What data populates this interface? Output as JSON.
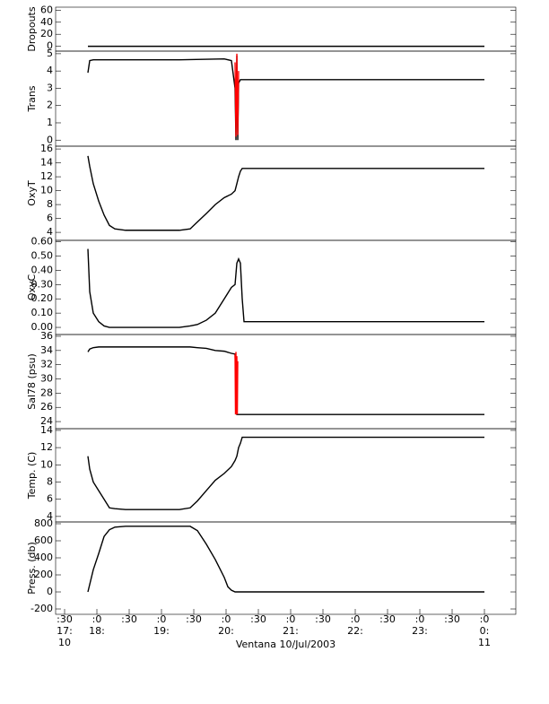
{
  "chart_data": [
    {
      "type": "line",
      "ylabel": "Dropouts",
      "xlim": [
        17.361,
        24.486
      ],
      "ylim": [
        -8,
        65
      ],
      "yticks": [
        0,
        20,
        40,
        60
      ],
      "x": [
        17.861,
        20.278,
        24.0
      ],
      "series": [
        {
          "name": "Dropouts",
          "color": "#000000",
          "values": [
            0,
            0,
            0
          ]
        }
      ]
    },
    {
      "type": "line",
      "ylabel": "Trans",
      "xlim": [
        17.361,
        24.486
      ],
      "ylim": [
        -0.35,
        5.15
      ],
      "yticks": [
        0,
        1,
        2,
        3,
        4,
        5
      ],
      "x": [
        17.861,
        17.889,
        17.944,
        18.028,
        18.194,
        18.722,
        19.278,
        19.972,
        20.083,
        20.139,
        20.153,
        20.167,
        20.181,
        20.194,
        20.222,
        20.278,
        24.0
      ],
      "series": [
        {
          "name": "Trans",
          "color": "#000000",
          "values": [
            3.9,
            4.6,
            4.65,
            4.65,
            4.65,
            4.65,
            4.65,
            4.7,
            4.6,
            3.0,
            0,
            4.9,
            0,
            3.3,
            3.5,
            3.5,
            3.5
          ]
        },
        {
          "name": "Trans spikes",
          "color": "#ff0000",
          "x": [
            20.139,
            20.153,
            20.167,
            20.181,
            20.194
          ],
          "values": [
            4.5,
            0.2,
            5.0,
            0.3,
            4.0
          ]
        }
      ]
    },
    {
      "type": "line",
      "ylabel": "OxyT",
      "xlim": [
        17.361,
        24.486
      ],
      "ylim": [
        2.85,
        16.4
      ],
      "yticks": [
        4,
        6,
        8,
        10,
        12,
        14,
        16
      ],
      "x": [
        17.861,
        17.889,
        17.944,
        18.028,
        18.111,
        18.194,
        18.278,
        18.444,
        19.278,
        19.444,
        19.556,
        19.694,
        19.833,
        19.972,
        20.083,
        20.139,
        20.167,
        20.194,
        20.222,
        20.25,
        24.0
      ],
      "series": [
        {
          "name": "OxyT",
          "color": "#000000",
          "values": [
            15,
            13.5,
            11,
            8.5,
            6.5,
            5,
            4.5,
            4.3,
            4.3,
            4.5,
            5.5,
            6.7,
            8,
            9,
            9.5,
            10,
            11,
            12,
            12.8,
            13.2,
            13.2
          ]
        }
      ]
    },
    {
      "type": "line",
      "ylabel": "OxyC",
      "xlim": [
        17.361,
        24.486
      ],
      "ylim": [
        -0.05,
        0.61
      ],
      "yticks": [
        {
          "value": 0,
          "label": "0.00"
        },
        {
          "value": 0.1,
          "label": "0.10"
        },
        {
          "value": 0.2,
          "label": "0.20"
        },
        {
          "value": 0.3,
          "label": "0.30"
        },
        {
          "value": 0.4,
          "label": "0.40"
        },
        {
          "value": 0.5,
          "label": "0.50"
        },
        {
          "value": 0.6,
          "label": "0.60"
        }
      ],
      "x": [
        17.861,
        17.889,
        17.944,
        18.028,
        18.111,
        18.194,
        19.278,
        19.444,
        19.556,
        19.694,
        19.833,
        19.972,
        20.083,
        20.139,
        20.167,
        20.194,
        20.222,
        20.25,
        20.278,
        24.0
      ],
      "series": [
        {
          "name": "OxyC",
          "color": "#000000",
          "values": [
            0.55,
            0.25,
            0.1,
            0.04,
            0.01,
            0,
            0,
            0.01,
            0.02,
            0.05,
            0.1,
            0.2,
            0.28,
            0.3,
            0.45,
            0.48,
            0.45,
            0.2,
            0.04,
            0.04
          ]
        }
      ]
    },
    {
      "type": "line",
      "ylabel": "Sal78 (psu)",
      "xlim": [
        17.361,
        24.486
      ],
      "ylim": [
        23,
        36.25
      ],
      "yticks": [
        24,
        26,
        28,
        30,
        32,
        34,
        36
      ],
      "x": [
        17.861,
        17.889,
        17.944,
        18.028,
        19.444,
        19.556,
        19.694,
        19.833,
        19.972,
        20.083,
        20.139,
        20.167,
        24.0
      ],
      "series": [
        {
          "name": "Sal78",
          "color": "#000000",
          "values": [
            33.8,
            34.2,
            34.4,
            34.5,
            34.5,
            34.4,
            34.3,
            34.0,
            33.9,
            33.6,
            33.5,
            25,
            25
          ]
        },
        {
          "name": "Sal78 spikes",
          "color": "#ff0000",
          "x": [
            20.139,
            20.146,
            20.153,
            20.16,
            20.167,
            20.174,
            20.181
          ],
          "values": [
            33.5,
            25,
            33.8,
            25,
            33.2,
            25,
            32.5
          ]
        }
      ]
    },
    {
      "type": "line",
      "ylabel": "Temp. (C)",
      "xlim": [
        17.361,
        24.486
      ],
      "ylim": [
        3.36,
        14.2
      ],
      "yticks": [
        4,
        6,
        8,
        10,
        12,
        14
      ],
      "x": [
        17.861,
        17.889,
        17.944,
        18.028,
        18.111,
        18.194,
        18.278,
        18.444,
        19.278,
        19.444,
        19.556,
        19.694,
        19.833,
        19.972,
        20.083,
        20.139,
        20.167,
        20.194,
        20.222,
        20.25,
        24.0
      ],
      "series": [
        {
          "name": "Temp",
          "color": "#000000",
          "values": [
            11,
            9.5,
            8,
            7,
            6,
            5,
            4.9,
            4.8,
            4.8,
            5,
            5.8,
            7,
            8.2,
            9,
            9.8,
            10.5,
            11,
            12,
            12.5,
            13.2,
            13.2
          ]
        }
      ]
    },
    {
      "type": "line",
      "ylabel": "Press. (db)",
      "xlabel": "Ventana 10/Jul/2003",
      "xlim": [
        17.361,
        24.486
      ],
      "ylim": [
        -263,
        821
      ],
      "yticks": [
        -200,
        0,
        200,
        400,
        600,
        800
      ],
      "xticks": [
        {
          "value": 17.5,
          "label": ":30\n17:\n10"
        },
        {
          "value": 18,
          "label": ":0\n18:"
        },
        {
          "value": 18.5,
          "label": ":30"
        },
        {
          "value": 19,
          "label": ":0\n19:"
        },
        {
          "value": 19.5,
          "label": ":30"
        },
        {
          "value": 20,
          "label": ":0\n20:"
        },
        {
          "value": 20.5,
          "label": ":30"
        },
        {
          "value": 21,
          "label": ":0\n21:"
        },
        {
          "value": 21.5,
          "label": ":30"
        },
        {
          "value": 22,
          "label": ":0\n22:"
        },
        {
          "value": 22.5,
          "label": ":30"
        },
        {
          "value": 23,
          "label": ":0\n23:"
        },
        {
          "value": 23.5,
          "label": ":30"
        },
        {
          "value": 24,
          "label": ":0\n0:\n11"
        }
      ],
      "x": [
        17.861,
        17.944,
        18.028,
        18.111,
        18.194,
        18.278,
        18.444,
        19.278,
        19.444,
        19.556,
        19.694,
        19.833,
        19.972,
        20.028,
        20.083,
        20.139,
        24.0
      ],
      "series": [
        {
          "name": "Press",
          "color": "#000000",
          "values": [
            0,
            260,
            450,
            650,
            730,
            760,
            770,
            770,
            770,
            720,
            560,
            380,
            170,
            60,
            20,
            0,
            0
          ]
        }
      ]
    }
  ]
}
